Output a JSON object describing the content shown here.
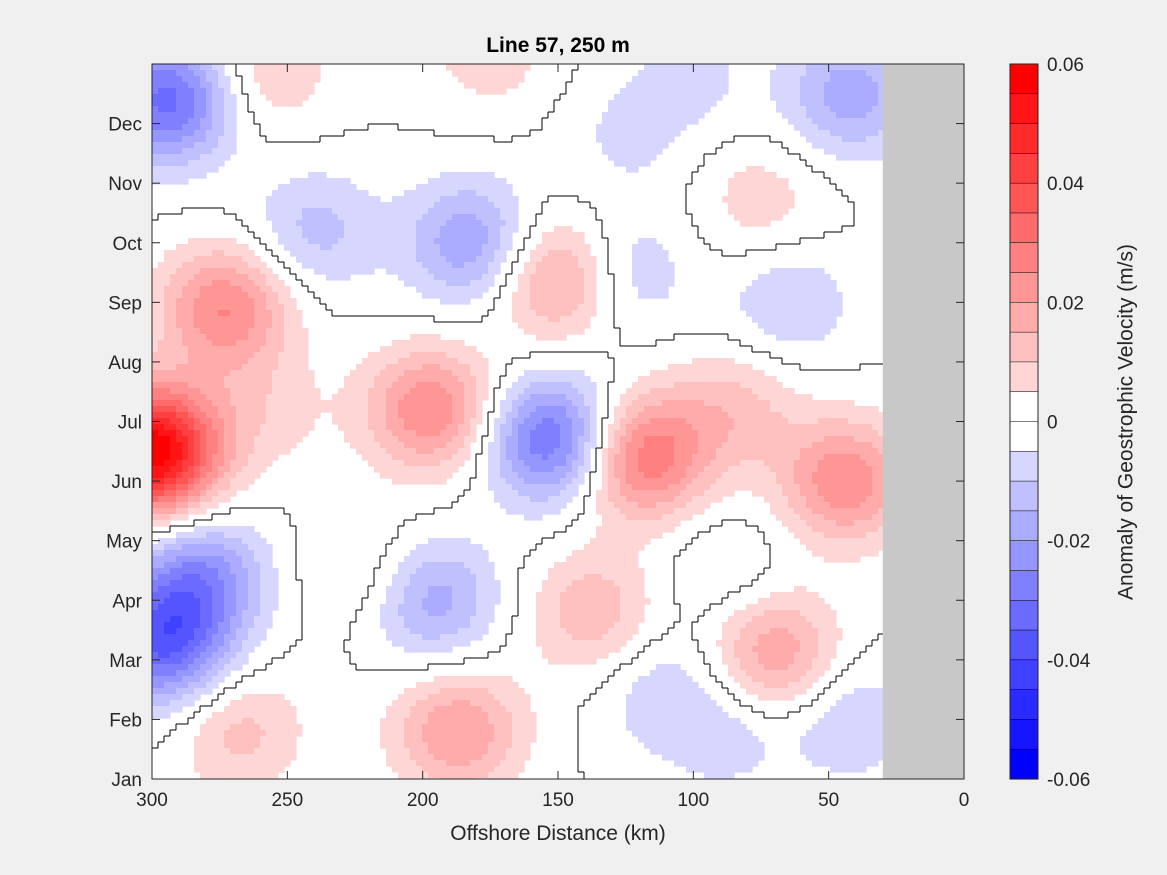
{
  "chart_data": {
    "type": "heatmap",
    "title": "Line 57, 250 m",
    "xlabel": "Offshore Distance (km)",
    "ylabel": "",
    "xlim": [
      300,
      0
    ],
    "x_ticks": [
      300,
      250,
      200,
      150,
      100,
      50,
      0
    ],
    "y_ticks": [
      "Jan",
      "Feb",
      "Mar",
      "Apr",
      "May",
      "Jun",
      "Jul",
      "Aug",
      "Sep",
      "Oct",
      "Nov",
      "Dec"
    ],
    "land_mask_from_km": 30,
    "land_mask_color": "#c8c8c8",
    "colorbar": {
      "label": "Anomaly of Geostrophic Velocity (m/s)",
      "min": -0.06,
      "max": 0.06,
      "step": 0.005,
      "ticks": [
        0.06,
        0.04,
        0.02,
        0,
        -0.02,
        -0.04,
        -0.06
      ],
      "negative_color": "#0000ff",
      "positive_color": "#ff0000",
      "zero_color": "#ffffff"
    },
    "features": [
      {
        "km": 300,
        "month": 5.5,
        "value": 0.06
      },
      {
        "km": 294,
        "month": 11.4,
        "value": -0.032
      },
      {
        "km": 296,
        "month": 2.3,
        "value": -0.034
      },
      {
        "km": 282,
        "month": 3.4,
        "value": -0.022
      },
      {
        "km": 273,
        "month": 7.9,
        "value": 0.025
      },
      {
        "km": 268,
        "month": 0.8,
        "value": 0.012
      },
      {
        "km": 240,
        "month": 9.2,
        "value": -0.012
      },
      {
        "km": 258,
        "month": 11.9,
        "value": 0.01
      },
      {
        "km": 258,
        "month": 6.2,
        "value": 0.007
      },
      {
        "km": 222,
        "month": 3.5,
        "value": 0.007
      },
      {
        "km": 197,
        "month": 6.2,
        "value": 0.025
      },
      {
        "km": 196,
        "month": 3.0,
        "value": -0.018
      },
      {
        "km": 187,
        "month": 0.8,
        "value": 0.02
      },
      {
        "km": 182,
        "month": 9.0,
        "value": -0.02
      },
      {
        "km": 175,
        "month": 12.2,
        "value": 0.008
      },
      {
        "km": 152,
        "month": 5.7,
        "value": -0.032
      },
      {
        "km": 149,
        "month": 8.4,
        "value": 0.022
      },
      {
        "km": 137,
        "month": 2.8,
        "value": 0.014
      },
      {
        "km": 119,
        "month": 5.4,
        "value": 0.03
      },
      {
        "km": 127,
        "month": 8.5,
        "value": -0.012
      },
      {
        "km": 124,
        "month": 10.8,
        "value": -0.006
      },
      {
        "km": 85,
        "month": 6.2,
        "value": 0.012
      },
      {
        "km": 75,
        "month": 9.7,
        "value": 0.008
      },
      {
        "km": 70,
        "month": 2.1,
        "value": 0.02
      },
      {
        "km": 65,
        "month": 8.0,
        "value": -0.01
      },
      {
        "km": 44,
        "month": 5.0,
        "value": 0.024
      },
      {
        "km": 42,
        "month": 11.5,
        "value": -0.018
      },
      {
        "km": 43,
        "month": 1.0,
        "value": -0.01
      },
      {
        "km": 88,
        "month": 0.8,
        "value": -0.008
      },
      {
        "km": 113,
        "month": 1.5,
        "value": -0.008
      },
      {
        "km": 100,
        "month": 11.8,
        "value": -0.006
      },
      {
        "km": 88,
        "month": 3.5,
        "value": -0.006
      }
    ]
  }
}
